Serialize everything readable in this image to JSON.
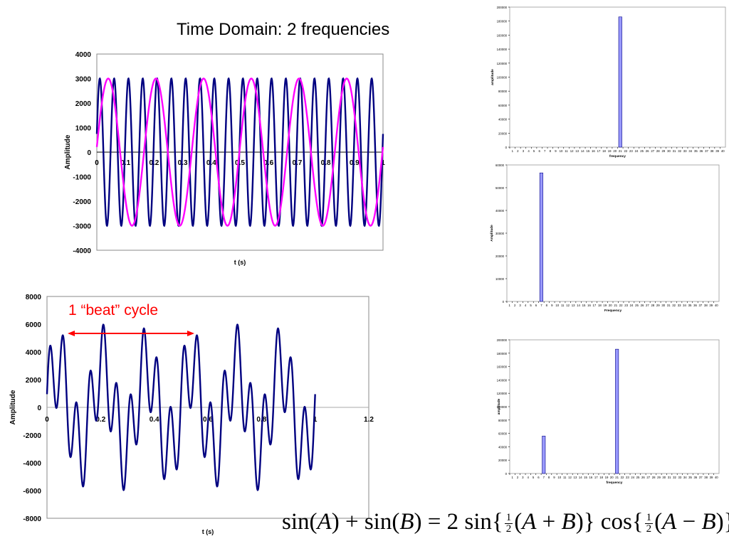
{
  "header": {
    "title": "Time Domain: 2 frequencies"
  },
  "annotation": {
    "beat_label": "1 “beat” cycle"
  },
  "formula": {
    "lhs1": "sin",
    "A": "A",
    "plus": "+",
    "lhs2": "sin",
    "B": "B",
    "eq": "=",
    "coef": "2 sin",
    "cos": "cos",
    "minus": "−",
    "one": "1",
    "two": "2"
  },
  "colors": {
    "navy": "#000080",
    "magenta": "#ff00ff",
    "bar": "#9999ff",
    "bar_edge": "#000080",
    "annotation": "#ff0000"
  },
  "chart_data": [
    {
      "type": "line",
      "title": "Time Domain: 2 frequencies",
      "xlabel": "t (s)",
      "ylabel": "Amplitude",
      "xlim": [
        0,
        1
      ],
      "ylim": [
        -4000,
        4000
      ],
      "x_ticks": [
        "0",
        "0.1",
        "0.2",
        "0.3",
        "0.4",
        "0.5",
        "0.6",
        "0.7",
        "0.8",
        "0.9",
        "1"
      ],
      "y_ticks": [
        "4000",
        "3000",
        "2000",
        "1000",
        "0",
        "-1000",
        "-2000",
        "-3000",
        "-4000"
      ],
      "series": [
        {
          "color": "#000080",
          "amplitude": 3000,
          "frequency_hz": 20,
          "phase_rad": 0.25
        },
        {
          "color": "#ff00ff",
          "amplitude": 3000,
          "frequency_hz": 6,
          "phase_rad": 0.07
        }
      ]
    },
    {
      "type": "line",
      "xlabel": "t (s)",
      "ylabel": "Amplitude",
      "xlim": [
        0,
        1.2
      ],
      "ylim": [
        -8000,
        8000
      ],
      "x_ticks": [
        "0",
        "0.2",
        "0.4",
        "0.6",
        "0.8",
        "1",
        "1.2"
      ],
      "y_ticks": [
        "8000",
        "6000",
        "4000",
        "2000",
        "0",
        "-2000",
        "-4000",
        "-6000",
        "-8000"
      ],
      "x_end": 1.0,
      "series": [
        {
          "color": "#000080",
          "components": [
            {
              "amplitude": 3000,
              "frequency_hz": 20,
              "phase_rad": 0.25
            },
            {
              "amplitude": 3000,
              "frequency_hz": 6,
              "phase_rad": 0.07
            }
          ]
        }
      ]
    },
    {
      "type": "bar",
      "xlabel": "frequency",
      "ylabel": "amplitude",
      "ylim": [
        0,
        200000
      ],
      "y_ticks": [
        "200000",
        "180000",
        "160000",
        "140000",
        "120000",
        "100000",
        "80000",
        "60000",
        "40000",
        "20000",
        "0"
      ],
      "categories": [
        "1",
        "2",
        "3",
        "4",
        "5",
        "6",
        "7",
        "8",
        "9",
        "10",
        "11",
        "12",
        "13",
        "14",
        "15",
        "16",
        "17",
        "18",
        "19",
        "20",
        "21",
        "22",
        "23",
        "24",
        "25",
        "26",
        "27",
        "28",
        "29",
        "30",
        "31",
        "32",
        "33",
        "34",
        "35",
        "36",
        "37",
        "38",
        "39",
        "40"
      ],
      "bars": [
        {
          "category": "21",
          "value": 186000
        }
      ]
    },
    {
      "type": "bar",
      "xlabel": "Frequency",
      "ylabel": "Amplitude",
      "ylim": [
        0,
        60000
      ],
      "y_ticks": [
        "60000",
        "50000",
        "40000",
        "30000",
        "20000",
        "10000",
        "0"
      ],
      "categories": [
        "1",
        "2",
        "3",
        "4",
        "5",
        "6",
        "7",
        "8",
        "9",
        "10",
        "11",
        "12",
        "13",
        "14",
        "15",
        "16",
        "17",
        "18",
        "19",
        "20",
        "21",
        "22",
        "23",
        "24",
        "25",
        "26",
        "27",
        "28",
        "29",
        "30",
        "31",
        "32",
        "33",
        "34",
        "35",
        "36",
        "37",
        "38",
        "39",
        "40"
      ],
      "bars": [
        {
          "category": "7",
          "value": 56500
        }
      ]
    },
    {
      "type": "bar",
      "xlabel": "frequency",
      "ylabel": "amplitude",
      "ylim": [
        0,
        200000
      ],
      "y_ticks": [
        "200000",
        "180000",
        "160000",
        "140000",
        "120000",
        "100000",
        "80000",
        "60000",
        "40000",
        "20000",
        "0"
      ],
      "categories": [
        "1",
        "2",
        "3",
        "4",
        "5",
        "6",
        "7",
        "8",
        "9",
        "10",
        "11",
        "12",
        "13",
        "14",
        "15",
        "16",
        "17",
        "18",
        "19",
        "20",
        "21",
        "22",
        "23",
        "24",
        "25",
        "26",
        "27",
        "28",
        "29",
        "30",
        "31",
        "32",
        "33",
        "34",
        "35",
        "36",
        "37",
        "38",
        "39",
        "40"
      ],
      "bars": [
        {
          "category": "7",
          "value": 56000
        },
        {
          "category": "21",
          "value": 186000
        }
      ]
    }
  ]
}
